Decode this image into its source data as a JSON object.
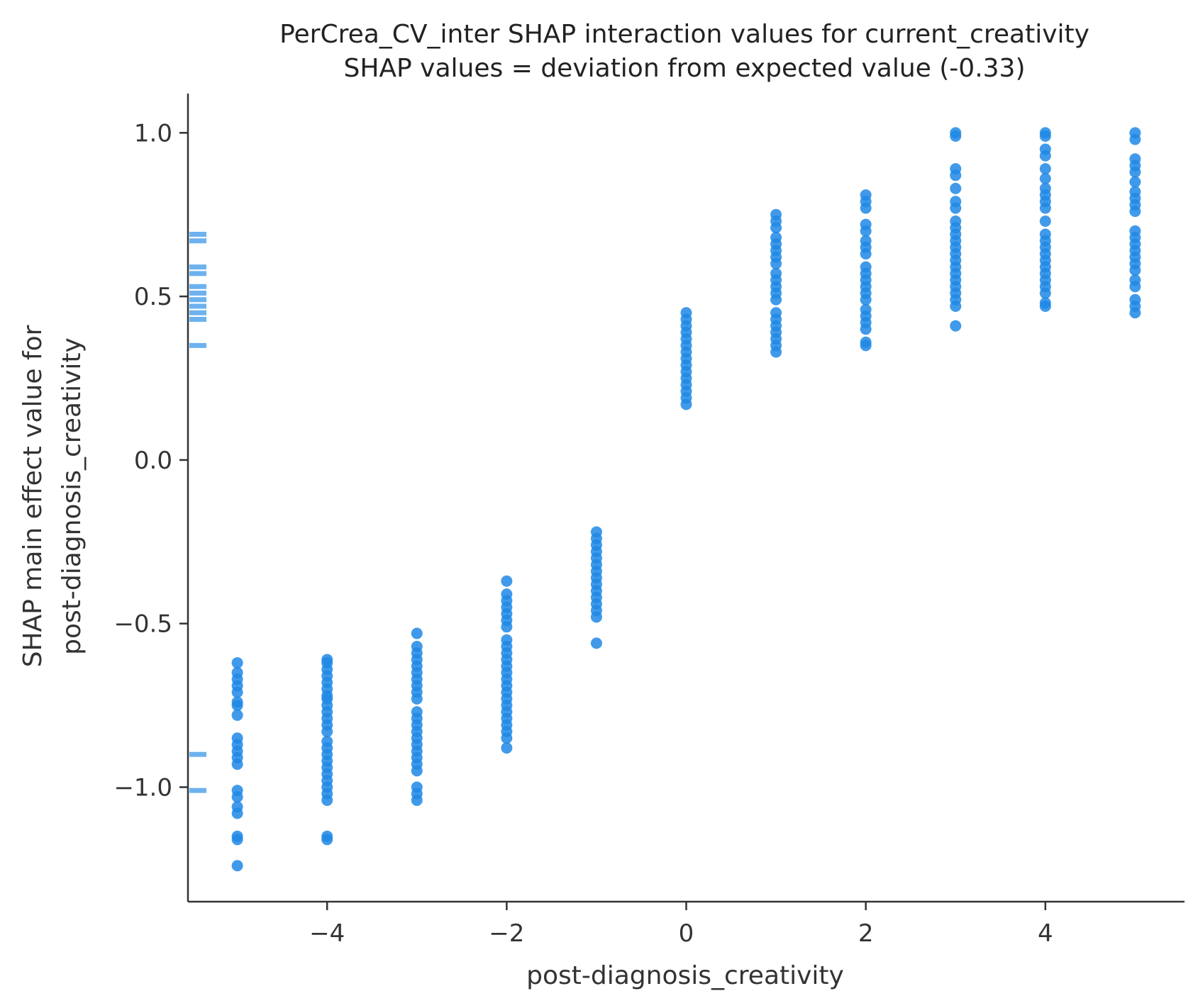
{
  "chart_data": {
    "type": "scatter",
    "title": "PerCrea_CV_inter SHAP interaction values for current_creativity",
    "subtitle": "SHAP values = deviation from expected value (-0.33)",
    "xlabel": "post-diagnosis_creativity",
    "ylabel": "SHAP main effect value for post-diagnosis_creativity",
    "ylabel_lines": [
      "SHAP main effect value for",
      "post-diagnosis_creativity"
    ],
    "xlim": [
      -5.55,
      5.55
    ],
    "ylim": [
      -1.35,
      1.12
    ],
    "xticks": [
      -4,
      -2,
      0,
      2,
      4
    ],
    "xtick_labels": [
      "−4",
      "−2",
      "0",
      "2",
      "4"
    ],
    "yticks": [
      -1.0,
      -0.5,
      0.0,
      0.5,
      1.0
    ],
    "ytick_labels": [
      "−1.0",
      "−0.5",
      "0.0",
      "0.5",
      "1.0"
    ],
    "grid": false,
    "point_color": "#1e88e5",
    "series": [
      {
        "x": -5,
        "y": [
          -0.62,
          -0.65,
          -0.67,
          -0.69,
          -0.71,
          -0.74,
          -0.75,
          -0.78,
          -0.85,
          -0.87,
          -0.89,
          -0.91,
          -0.93,
          -1.01,
          -1.03,
          -1.06,
          -1.08,
          -1.15,
          -1.16,
          -1.24
        ]
      },
      {
        "x": -4,
        "y": [
          -0.61,
          -0.62,
          -0.64,
          -0.66,
          -0.68,
          -0.7,
          -0.72,
          -0.73,
          -0.75,
          -0.77,
          -0.79,
          -0.81,
          -0.83,
          -0.86,
          -0.88,
          -0.9,
          -0.92,
          -0.94,
          -0.96,
          -0.98,
          -1.0,
          -1.02,
          -1.04,
          -1.15,
          -1.16
        ]
      },
      {
        "x": -3,
        "y": [
          -0.53,
          -0.57,
          -0.59,
          -0.61,
          -0.63,
          -0.65,
          -0.67,
          -0.69,
          -0.71,
          -0.73,
          -0.77,
          -0.79,
          -0.81,
          -0.83,
          -0.85,
          -0.87,
          -0.89,
          -0.91,
          -0.93,
          -0.95,
          -1.0,
          -1.02,
          -1.04
        ]
      },
      {
        "x": -2,
        "y": [
          -0.37,
          -0.41,
          -0.43,
          -0.45,
          -0.47,
          -0.49,
          -0.51,
          -0.55,
          -0.57,
          -0.59,
          -0.61,
          -0.63,
          -0.65,
          -0.67,
          -0.69,
          -0.71,
          -0.73,
          -0.75,
          -0.77,
          -0.79,
          -0.81,
          -0.83,
          -0.85,
          -0.88
        ]
      },
      {
        "x": -1,
        "y": [
          -0.22,
          -0.24,
          -0.26,
          -0.28,
          -0.3,
          -0.32,
          -0.34,
          -0.36,
          -0.38,
          -0.4,
          -0.42,
          -0.44,
          -0.46,
          -0.48,
          -0.56
        ]
      },
      {
        "x": 0,
        "y": [
          0.45,
          0.43,
          0.41,
          0.39,
          0.37,
          0.35,
          0.33,
          0.31,
          0.29,
          0.27,
          0.25,
          0.23,
          0.21,
          0.19,
          0.17
        ]
      },
      {
        "x": 1,
        "y": [
          0.75,
          0.73,
          0.71,
          0.68,
          0.66,
          0.64,
          0.62,
          0.6,
          0.57,
          0.55,
          0.53,
          0.51,
          0.49,
          0.45,
          0.43,
          0.41,
          0.39,
          0.37,
          0.35,
          0.33
        ]
      },
      {
        "x": 2,
        "y": [
          0.81,
          0.79,
          0.77,
          0.72,
          0.7,
          0.67,
          0.65,
          0.63,
          0.59,
          0.57,
          0.55,
          0.53,
          0.51,
          0.49,
          0.46,
          0.44,
          0.42,
          0.4,
          0.36,
          0.35
        ]
      },
      {
        "x": 3,
        "y": [
          1.0,
          0.99,
          0.89,
          0.87,
          0.83,
          0.79,
          0.77,
          0.73,
          0.71,
          0.69,
          0.67,
          0.65,
          0.63,
          0.61,
          0.59,
          0.57,
          0.55,
          0.53,
          0.51,
          0.49,
          0.47,
          0.41
        ]
      },
      {
        "x": 4,
        "y": [
          1.0,
          0.99,
          0.95,
          0.93,
          0.89,
          0.86,
          0.83,
          0.81,
          0.79,
          0.77,
          0.73,
          0.69,
          0.67,
          0.65,
          0.63,
          0.61,
          0.59,
          0.57,
          0.55,
          0.53,
          0.51,
          0.48,
          0.47
        ]
      },
      {
        "x": 5,
        "y": [
          1.0,
          0.98,
          0.92,
          0.9,
          0.88,
          0.85,
          0.82,
          0.8,
          0.78,
          0.76,
          0.7,
          0.68,
          0.66,
          0.64,
          0.62,
          0.6,
          0.58,
          0.55,
          0.53,
          0.49,
          0.47,
          0.45
        ]
      }
    ],
    "marginal_ticks": [
      0.69,
      0.67,
      0.59,
      0.57,
      0.53,
      0.51,
      0.49,
      0.47,
      0.45,
      0.43,
      0.35,
      -0.9,
      -1.01
    ]
  }
}
